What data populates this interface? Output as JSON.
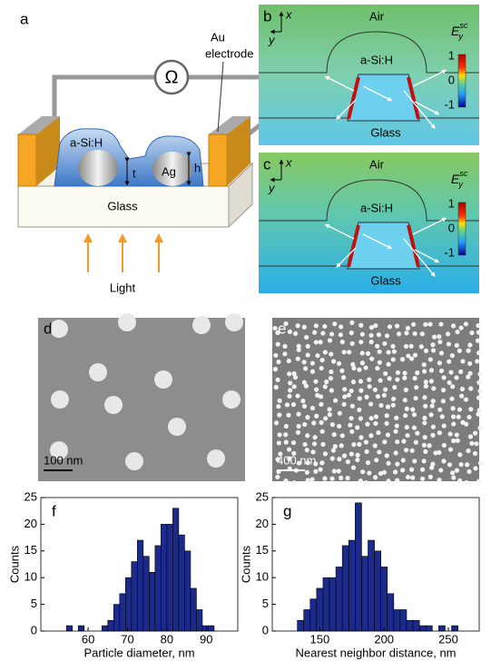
{
  "panels": {
    "a": {
      "label": "a",
      "ohm": "Ω",
      "electrode": [
        "Au",
        "electrode"
      ],
      "layer": "a-Si:H",
      "thickness": "t",
      "particle": "Ag",
      "height": "h",
      "substrate": "Glass",
      "light": "Light"
    },
    "b": {
      "label": "b",
      "axis_x": "x",
      "axis_y": "y",
      "air": "Air",
      "layer": "a-Si:H",
      "substrate": "Glass",
      "colorbar_label": {
        "base": "E",
        "sub": "y",
        "sup": "sc"
      },
      "colorbar_ticks": [
        1,
        0,
        -1
      ]
    },
    "c": {
      "label": "c",
      "axis_x": "x",
      "axis_y": "y",
      "air": "Air",
      "layer": "a-Si:H",
      "substrate": "Glass",
      "colorbar_label": {
        "base": "E",
        "sub": "y",
        "sup": "sc"
      },
      "colorbar_ticks": [
        1,
        0,
        -1
      ]
    },
    "d": {
      "label": "d",
      "scale_bar": "100 nm"
    },
    "e": {
      "label": "e",
      "scale_bar": "400 nm"
    }
  },
  "chart_data": [
    {
      "type": "histogram",
      "panel_label": "f",
      "x_label": "Particle diameter, nm",
      "y_label": "Counts",
      "color": "#1c2a8c",
      "bins": [
        54.5,
        56,
        57.5,
        59,
        60.5,
        62,
        63.5,
        65,
        66.5,
        68,
        69.5,
        71,
        72.5,
        74,
        75.5,
        77,
        78.5,
        80,
        81.5,
        83,
        84.5,
        86,
        87.5,
        89,
        90.5,
        92
      ],
      "values": [
        1,
        0,
        1,
        0,
        0,
        0,
        1,
        2,
        5,
        7,
        10,
        13,
        17,
        14,
        11,
        16,
        20,
        20,
        23,
        18,
        15,
        8,
        4,
        1,
        1
      ],
      "xlim": [
        48,
        98
      ],
      "xticks": [
        60,
        70,
        80,
        90
      ],
      "ylim": [
        0,
        25
      ],
      "yticks": [
        0,
        5,
        10,
        15,
        20,
        25
      ]
    },
    {
      "type": "histogram",
      "panel_label": "g",
      "x_label": "Nearest neighbor distance, nm",
      "y_label": "Counts",
      "color": "#1c2a8c",
      "bins": [
        132.5,
        137.5,
        142.5,
        147.5,
        152.5,
        157.5,
        162.5,
        167.5,
        172.5,
        177.5,
        182.5,
        187.5,
        192.5,
        197.5,
        202.5,
        207.5,
        212.5,
        217.5,
        222.5,
        227.5,
        232.5,
        237.5,
        242.5,
        247.5,
        252.5,
        257.5
      ],
      "values": [
        2,
        4,
        6,
        8,
        10,
        10,
        12,
        16,
        17,
        24,
        14,
        17,
        15,
        12,
        7,
        4,
        4,
        2,
        2,
        1,
        1,
        0,
        1,
        0,
        1
      ],
      "xlim": [
        113,
        274
      ],
      "xticks": [
        150,
        200,
        250
      ],
      "ylim": [
        0,
        25
      ],
      "yticks": [
        0,
        5,
        10,
        15,
        20,
        25
      ]
    }
  ]
}
